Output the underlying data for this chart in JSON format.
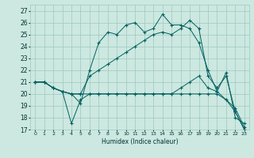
{
  "xlabel": "Humidex (Indice chaleur)",
  "bg_color": "#cce8e0",
  "grid_color": "#9ec8be",
  "line_color": "#006060",
  "xlim": [
    -0.5,
    23.5
  ],
  "ylim": [
    17,
    27.5
  ],
  "xticks": [
    0,
    1,
    2,
    3,
    4,
    5,
    6,
    7,
    8,
    9,
    10,
    11,
    12,
    13,
    14,
    15,
    16,
    17,
    18,
    19,
    20,
    21,
    22,
    23
  ],
  "yticks": [
    17,
    18,
    19,
    20,
    21,
    22,
    23,
    24,
    25,
    26,
    27
  ],
  "series": [
    {
      "y": [
        21.0,
        21.0,
        20.5,
        20.2,
        20.0,
        20.0,
        21.5,
        22.0,
        22.5,
        23.0,
        23.5,
        24.0,
        24.5,
        25.0,
        25.2,
        25.0,
        25.5,
        26.2,
        25.5,
        21.5,
        20.5,
        21.5,
        18.5,
        17.0
      ],
      "marker": "+"
    },
    {
      "y": [
        21.0,
        21.0,
        20.5,
        20.2,
        20.0,
        20.0,
        20.0,
        20.0,
        20.0,
        20.0,
        20.0,
        20.0,
        20.0,
        20.0,
        20.0,
        20.0,
        20.5,
        21.0,
        21.5,
        20.5,
        20.2,
        19.5,
        18.8,
        17.2
      ],
      "marker": "+"
    },
    {
      "y": [
        21.0,
        21.0,
        20.5,
        20.2,
        17.5,
        19.5,
        20.0,
        20.0,
        20.0,
        20.0,
        20.0,
        20.0,
        20.0,
        20.0,
        20.0,
        20.0,
        20.0,
        20.0,
        20.0,
        20.0,
        20.0,
        19.5,
        18.5,
        17.0
      ],
      "marker": "+"
    },
    {
      "y": [
        21.0,
        21.0,
        20.5,
        20.2,
        20.0,
        19.2,
        22.0,
        24.3,
        25.2,
        25.0,
        25.8,
        26.0,
        25.2,
        25.5,
        26.7,
        25.8,
        25.8,
        25.5,
        24.3,
        22.0,
        20.2,
        21.8,
        18.0,
        17.5
      ],
      "marker": "+"
    }
  ]
}
